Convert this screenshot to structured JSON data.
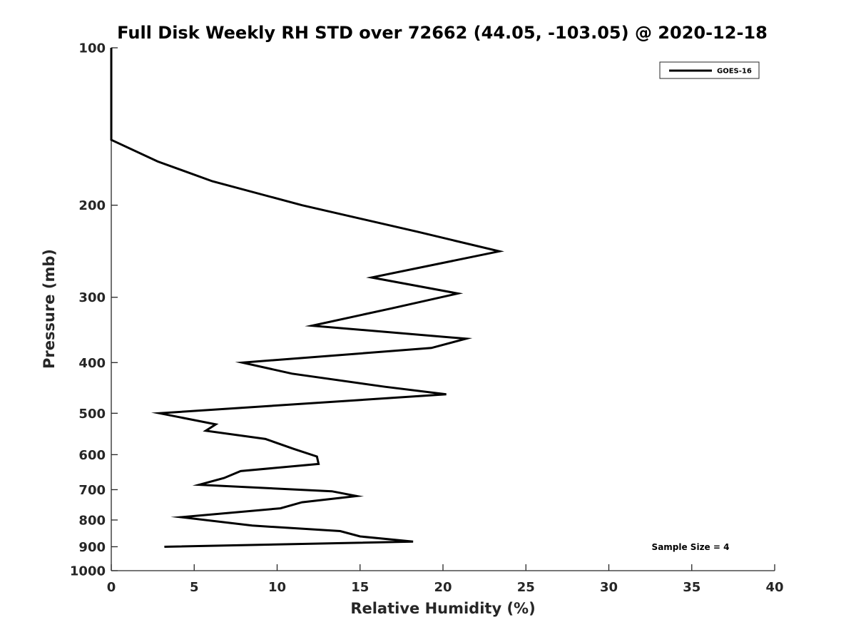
{
  "chart_data": {
    "type": "line",
    "title": "Full Disk Weekly RH STD over 72662 (44.05, -103.05) @ 2020-12-18",
    "xlabel": "Relative Humidity (%)",
    "ylabel": "Pressure (mb)",
    "xlim": [
      0,
      40
    ],
    "ylim": [
      100,
      1000
    ],
    "y_scale": "log",
    "y_reversed": true,
    "x_ticks": [
      "0",
      "5",
      "10",
      "15",
      "20",
      "25",
      "30",
      "35",
      "40"
    ],
    "y_ticks": [
      "100",
      "200",
      "300",
      "400",
      "500",
      "600",
      "700",
      "800",
      "900",
      "1000"
    ],
    "grid": false,
    "legend_position": "top-right",
    "series": [
      {
        "name": "GOES-16",
        "color": "#000000",
        "points": [
          {
            "x": 0,
            "y": 100
          },
          {
            "x": 0,
            "y": 125
          },
          {
            "x": 0,
            "y": 150
          },
          {
            "x": 2.8,
            "y": 165
          },
          {
            "x": 6.1,
            "y": 180
          },
          {
            "x": 11.5,
            "y": 200
          },
          {
            "x": 18.5,
            "y": 225
          },
          {
            "x": 23.4,
            "y": 245
          },
          {
            "x": 15.7,
            "y": 275
          },
          {
            "x": 20.9,
            "y": 295
          },
          {
            "x": 16.9,
            "y": 315
          },
          {
            "x": 12.1,
            "y": 340
          },
          {
            "x": 21.4,
            "y": 360
          },
          {
            "x": 19.3,
            "y": 375
          },
          {
            "x": 7.9,
            "y": 400
          },
          {
            "x": 10.9,
            "y": 420
          },
          {
            "x": 16.5,
            "y": 445
          },
          {
            "x": 20.2,
            "y": 460
          },
          {
            "x": 2.9,
            "y": 500
          },
          {
            "x": 6.3,
            "y": 525
          },
          {
            "x": 5.7,
            "y": 540
          },
          {
            "x": 9.3,
            "y": 560
          },
          {
            "x": 11.0,
            "y": 585
          },
          {
            "x": 12.4,
            "y": 605
          },
          {
            "x": 12.5,
            "y": 625
          },
          {
            "x": 7.8,
            "y": 645
          },
          {
            "x": 6.8,
            "y": 665
          },
          {
            "x": 5.3,
            "y": 685
          },
          {
            "x": 13.3,
            "y": 705
          },
          {
            "x": 14.8,
            "y": 720
          },
          {
            "x": 11.5,
            "y": 740
          },
          {
            "x": 10.2,
            "y": 760
          },
          {
            "x": 4.2,
            "y": 790
          },
          {
            "x": 8.5,
            "y": 820
          },
          {
            "x": 13.8,
            "y": 840
          },
          {
            "x": 15.0,
            "y": 860
          },
          {
            "x": 18.2,
            "y": 880
          },
          {
            "x": 3.2,
            "y": 900
          }
        ]
      }
    ],
    "annotations": [
      {
        "text": "Sample Size = 4",
        "position": "bottom-right"
      }
    ]
  }
}
